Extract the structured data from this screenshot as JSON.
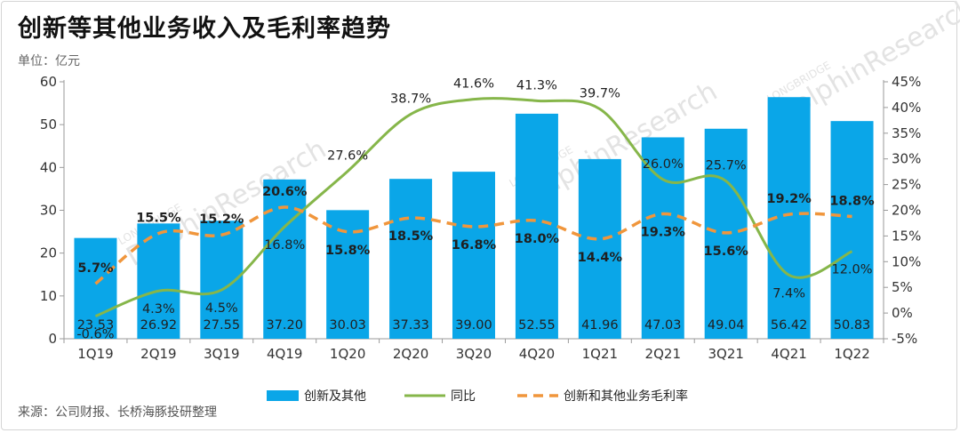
{
  "title": "创新等其他业务收入及毛利率趋势",
  "unit_label": "单位：亿元",
  "source": "来源：公司财报、长桥海豚投研整理",
  "watermark": {
    "small": "LONGBRIDGE",
    "large": "DolphinResearch"
  },
  "colors": {
    "bar": "#0aa6e8",
    "line": "#86b64a",
    "margin": "#f0963c",
    "axis": "#9a9a9a"
  },
  "chart_data": {
    "type": "bar",
    "categories": [
      "1Q19",
      "2Q19",
      "3Q19",
      "4Q19",
      "1Q20",
      "2Q20",
      "3Q20",
      "4Q20",
      "1Q21",
      "2Q21",
      "3Q21",
      "4Q21",
      "1Q22"
    ],
    "ylim_left": [
      0,
      60
    ],
    "yticks_left": [
      0,
      10,
      20,
      30,
      40,
      50,
      60
    ],
    "ylim_right": [
      -5,
      45
    ],
    "yticks_right": [
      "-5%",
      "0%",
      "5%",
      "10%",
      "15%",
      "20%",
      "25%",
      "30%",
      "35%",
      "40%",
      "45%"
    ],
    "series": [
      {
        "name": "创新及其他",
        "type": "bar",
        "axis": "left",
        "values": [
          23.53,
          26.92,
          27.55,
          37.2,
          30.03,
          37.33,
          39.0,
          52.55,
          41.96,
          47.03,
          49.04,
          56.42,
          50.83
        ],
        "labels": [
          "23.53",
          "26.92",
          "27.55",
          "37.20",
          "30.03",
          "37.33",
          "39.00",
          "52.55",
          "41.96",
          "47.03",
          "49.04",
          "56.42",
          "50.83"
        ]
      },
      {
        "name": "同比",
        "type": "line",
        "axis": "right",
        "values": [
          -0.6,
          4.3,
          4.5,
          16.8,
          27.6,
          38.7,
          41.6,
          41.3,
          39.7,
          26.0,
          25.7,
          7.4,
          12.0
        ],
        "labels": [
          "-0.6%",
          "4.3%",
          "4.5%",
          "16.8%",
          "27.6%",
          "38.7%",
          "41.6%",
          "41.3%",
          "39.7%",
          "26.0%",
          "25.7%",
          "7.4%",
          "12.0%"
        ]
      },
      {
        "name": "创新和其他业务毛利率",
        "type": "line-dashed",
        "axis": "right",
        "values": [
          5.7,
          15.5,
          15.2,
          20.6,
          15.8,
          18.5,
          16.8,
          18.0,
          14.4,
          19.3,
          15.6,
          19.2,
          18.8
        ],
        "labels": [
          "5.7%",
          "15.5%",
          "15.2%",
          "20.6%",
          "15.8%",
          "18.5%",
          "16.8%",
          "18.0%",
          "14.4%",
          "19.3%",
          "15.6%",
          "19.2%",
          "18.8%"
        ]
      }
    ],
    "grid": false,
    "legend_position": "bottom"
  }
}
